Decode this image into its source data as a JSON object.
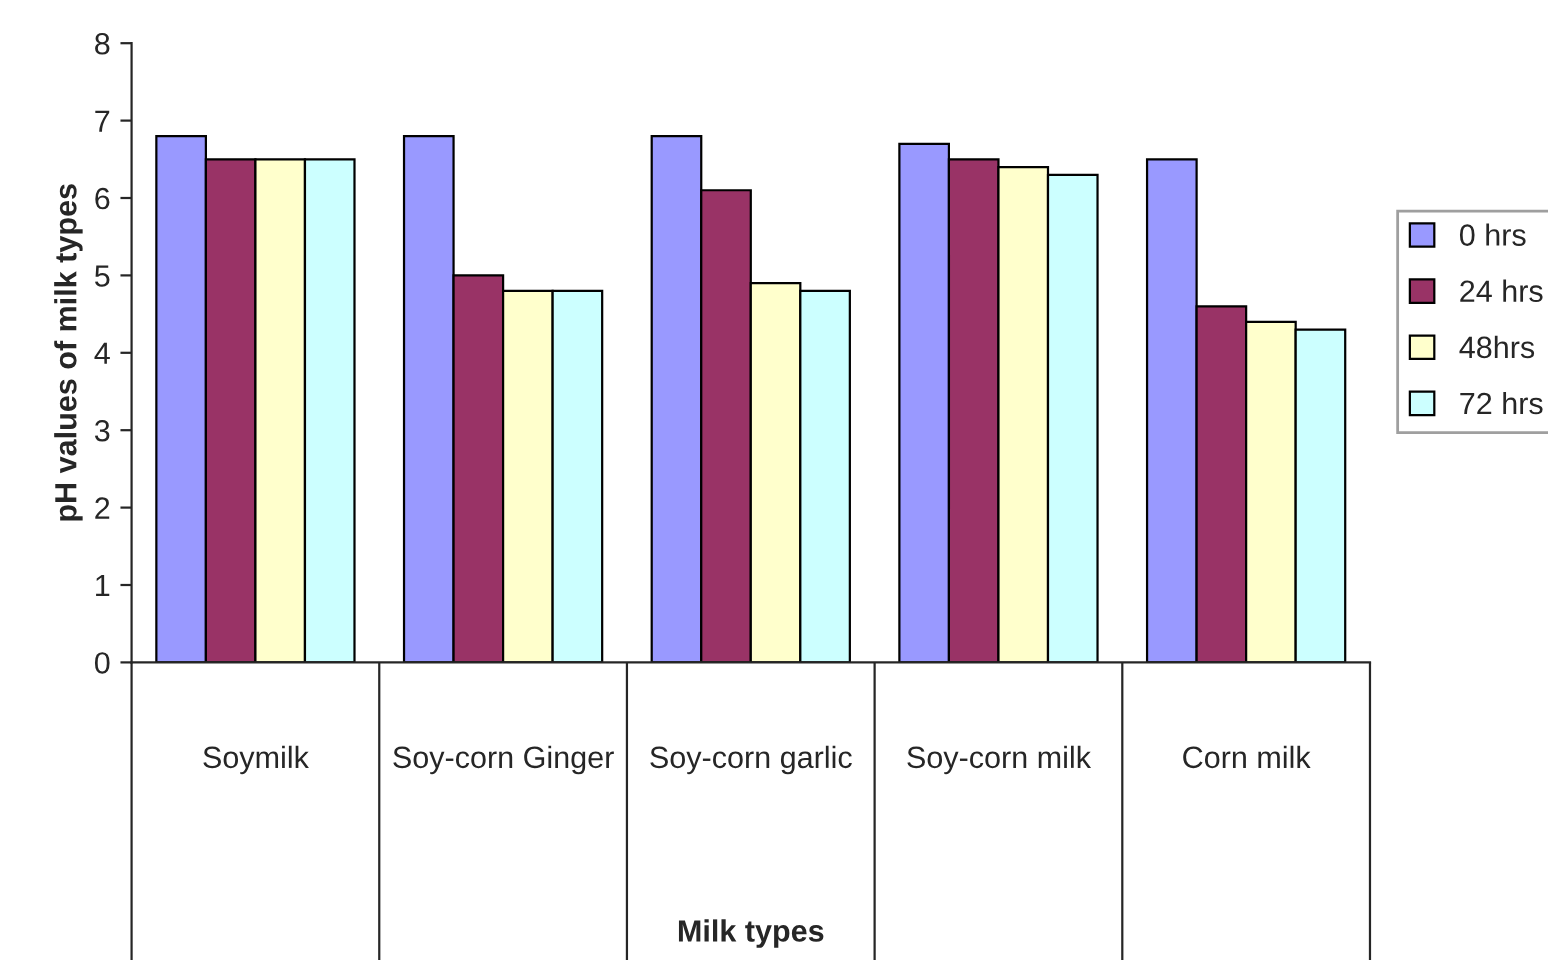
{
  "chart_data": {
    "type": "bar",
    "xlabel": "Milk types",
    "ylabel": "pH values of milk types",
    "categories": [
      "Soymilk",
      "Soy-corn Ginger",
      "Soy-corn garlic",
      "Soy-corn milk",
      "Corn milk"
    ],
    "series": [
      {
        "name": "0 hrs",
        "color": "#9999ff",
        "values": [
          6.8,
          6.8,
          6.8,
          6.7,
          6.5
        ]
      },
      {
        "name": "24 hrs",
        "color": "#993366",
        "values": [
          6.5,
          5.0,
          6.1,
          6.5,
          4.6
        ]
      },
      {
        "name": "48hrs",
        "color": "#ffffcc",
        "values": [
          6.5,
          4.8,
          4.9,
          6.4,
          4.4
        ]
      },
      {
        "name": "72 hrs",
        "color": "#ccffff",
        "values": [
          6.5,
          4.8,
          4.8,
          6.3,
          4.3
        ]
      }
    ],
    "ylim": [
      0,
      8
    ],
    "yticks": [
      0,
      1,
      2,
      3,
      4,
      5,
      6,
      7,
      8
    ],
    "grid": false,
    "legend": "right"
  }
}
